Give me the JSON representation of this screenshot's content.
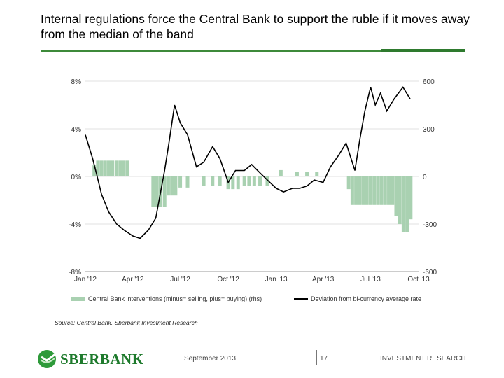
{
  "slide": {
    "title": "Internal regulations force the Central Bank to support the ruble if it moves away from the median of the band",
    "source": "Source: Central Bank, Sberbank Investment Research",
    "logo_text": "SBERBANK",
    "date": "September 2013",
    "page_number": "17",
    "department": "INVESTMENT RESEARCH",
    "colors": {
      "accent": "#2e7a2e",
      "bars": "#a9d1b1",
      "line": "#000000"
    }
  },
  "chart_data": {
    "type": "bar+line",
    "title": "",
    "x_ticks": [
      "Jan '12",
      "Apr '12",
      "Jul '12",
      "Oct '12",
      "Jan '13",
      "Apr '13",
      "Jul '13",
      "Oct '13"
    ],
    "y_left": {
      "ticks": [
        "8%",
        "4%",
        "0%",
        "-4%",
        "-8%"
      ],
      "range": [
        -8,
        8
      ]
    },
    "y_right": {
      "ticks": [
        "600",
        "300",
        "0",
        "-300",
        "-600"
      ],
      "range": [
        -600,
        600
      ]
    },
    "grid": true,
    "legend_position": "bottom",
    "series": [
      {
        "name": "Central Bank interventions (minus= selling, plus= buying) (rhs)",
        "kind": "bar",
        "axis": "right",
        "x": [
          "2012-01-18",
          "2012-01-25",
          "2012-02-01",
          "2012-02-08",
          "2012-02-15",
          "2012-02-22",
          "2012-03-01",
          "2012-03-08",
          "2012-03-15",
          "2012-03-22",
          "2012-05-10",
          "2012-05-17",
          "2012-05-24",
          "2012-06-01",
          "2012-06-08",
          "2012-06-15",
          "2012-06-22",
          "2012-07-01",
          "2012-07-15",
          "2012-08-15",
          "2012-09-01",
          "2012-09-15",
          "2012-10-01",
          "2012-10-10",
          "2012-10-20",
          "2012-11-01",
          "2012-11-10",
          "2012-11-20",
          "2012-12-01",
          "2012-12-15",
          "2013-01-10",
          "2013-02-10",
          "2013-03-01",
          "2013-03-20",
          "2013-05-20",
          "2013-05-27",
          "2013-06-03",
          "2013-06-10",
          "2013-06-17",
          "2013-06-24",
          "2013-07-01",
          "2013-07-08",
          "2013-07-15",
          "2013-07-22",
          "2013-07-29",
          "2013-08-05",
          "2013-08-12",
          "2013-08-19",
          "2013-08-26",
          "2013-09-02",
          "2013-09-09",
          "2013-09-16"
        ],
        "values": [
          70,
          100,
          100,
          100,
          100,
          100,
          100,
          100,
          100,
          100,
          -190,
          -190,
          -190,
          -190,
          -120,
          -120,
          -120,
          -70,
          -70,
          -60,
          -60,
          -60,
          -80,
          -80,
          -80,
          -60,
          -60,
          -60,
          -60,
          -60,
          40,
          30,
          30,
          30,
          -80,
          -180,
          -180,
          -180,
          -180,
          -180,
          -180,
          -180,
          -180,
          -180,
          -180,
          -180,
          -180,
          -250,
          -300,
          -350,
          -350,
          -270
        ]
      },
      {
        "name": "Deviation from bi-currency average rate",
        "kind": "line",
        "axis": "left",
        "x": [
          "2012-01-01",
          "2012-01-08",
          "2012-01-15",
          "2012-01-22",
          "2012-02-01",
          "2012-02-15",
          "2012-03-01",
          "2012-03-15",
          "2012-04-01",
          "2012-04-15",
          "2012-05-01",
          "2012-05-15",
          "2012-06-01",
          "2012-06-10",
          "2012-06-20",
          "2012-07-01",
          "2012-07-15",
          "2012-08-01",
          "2012-08-15",
          "2012-09-01",
          "2012-09-15",
          "2012-10-01",
          "2012-10-15",
          "2012-11-01",
          "2012-11-15",
          "2012-12-01",
          "2012-12-15",
          "2013-01-01",
          "2013-01-15",
          "2013-02-01",
          "2013-02-15",
          "2013-03-01",
          "2013-03-15",
          "2013-04-01",
          "2013-04-15",
          "2013-05-01",
          "2013-05-15",
          "2013-06-01",
          "2013-06-10",
          "2013-06-20",
          "2013-07-01",
          "2013-07-10",
          "2013-07-20",
          "2013-08-01",
          "2013-08-15",
          "2013-09-01",
          "2013-09-15"
        ],
        "values": [
          3.5,
          2.5,
          1.5,
          0.3,
          -1.5,
          -3.0,
          -4.0,
          -4.5,
          -5.0,
          -5.2,
          -4.5,
          -3.5,
          0.5,
          3.0,
          6.0,
          4.5,
          3.5,
          0.8,
          1.2,
          2.5,
          1.5,
          -0.5,
          0.5,
          0.5,
          1.0,
          0.3,
          -0.3,
          -1.0,
          -1.3,
          -1.0,
          -1.0,
          -0.8,
          -0.3,
          -0.5,
          0.8,
          1.8,
          2.8,
          0.5,
          3.0,
          5.5,
          7.5,
          6.0,
          7.0,
          5.5,
          6.5,
          7.5,
          6.5
        ]
      }
    ]
  }
}
